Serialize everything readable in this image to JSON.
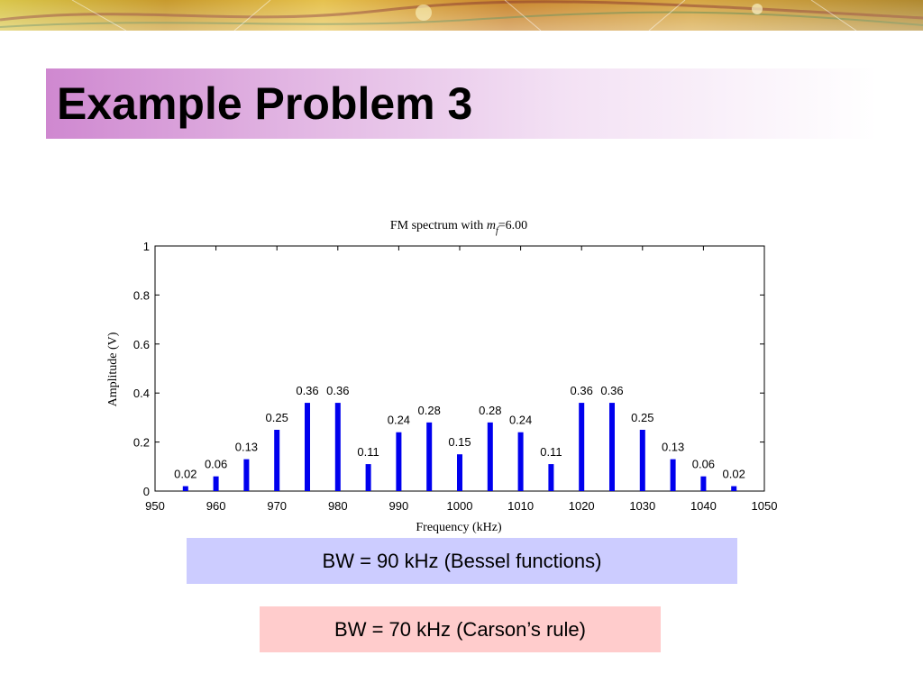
{
  "slide": {
    "title": "Example Problem 3",
    "bw_bessel": "BW = 90 kHz (Bessel functions)",
    "bw_carson": "BW = 70 kHz (Carson’s rule)"
  },
  "chart_data": {
    "type": "bar",
    "title": "FM spectrum with",
    "title_var": "m",
    "title_sub": "f",
    "title_rest": "=6.00",
    "xlabel": "Frequency (kHz)",
    "ylabel": "Amplitude (V)",
    "xlim": [
      950,
      1050
    ],
    "ylim": [
      0,
      1
    ],
    "xticks": [
      950,
      960,
      970,
      980,
      990,
      1000,
      1010,
      1020,
      1030,
      1040,
      1050
    ],
    "yticks": [
      0,
      0.2,
      0.4,
      0.6,
      0.8,
      1
    ],
    "ytick_labels": [
      "0",
      "0.2",
      "0.4",
      "0.6",
      "0.8",
      "1"
    ],
    "x": [
      955,
      960,
      965,
      970,
      975,
      980,
      985,
      990,
      995,
      1000,
      1005,
      1010,
      1015,
      1020,
      1025,
      1030,
      1035,
      1040,
      1045
    ],
    "values": [
      0.02,
      0.06,
      0.13,
      0.25,
      0.36,
      0.36,
      0.11,
      0.24,
      0.28,
      0.15,
      0.28,
      0.24,
      0.11,
      0.36,
      0.36,
      0.25,
      0.13,
      0.06,
      0.02
    ],
    "labels": [
      "0.02",
      "0.06",
      "0.13",
      "0.25",
      "0.36",
      "0.36",
      "0.11",
      "0.24",
      "0.28",
      "0.15",
      "0.28",
      "0.24",
      "0.11",
      "0.36",
      "0.36",
      "0.25",
      "0.13",
      "0.06",
      "0.02"
    ],
    "bar_color": "#0000ee",
    "grid": false
  },
  "theme": {
    "title_gradient_start": "#cf88d0",
    "bessel_box_color": "#ccccff",
    "carson_box_color": "#ffcccc"
  }
}
